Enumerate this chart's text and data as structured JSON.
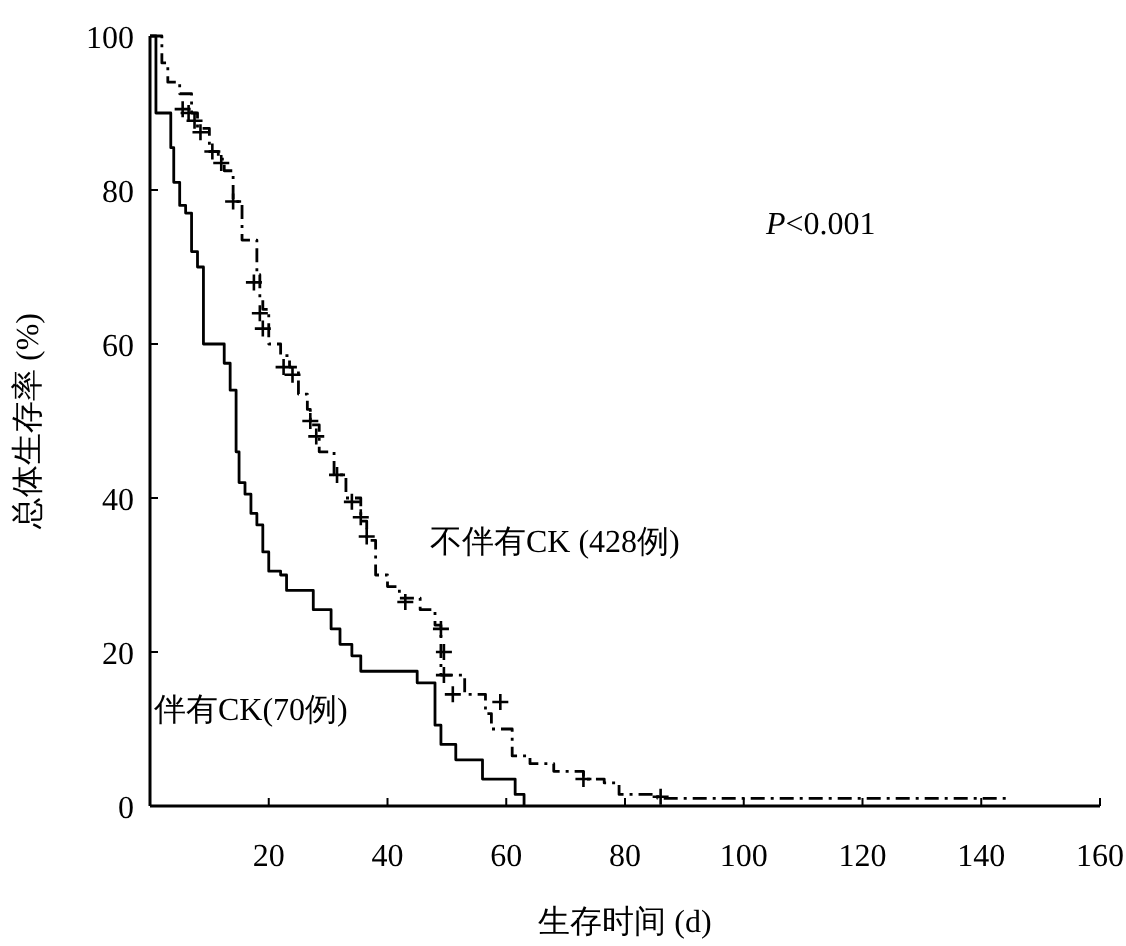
{
  "chart_data": {
    "type": "step",
    "xlabel": "生存时间 (d)",
    "ylabel": "总体生存率 (%)",
    "annotations": [
      "*P*<0.001"
    ],
    "xlim": [
      0,
      160
    ],
    "ylim": [
      0,
      100
    ],
    "xticks": [
      20,
      40,
      60,
      80,
      100,
      120,
      140,
      160
    ],
    "yticks": [
      0,
      20,
      40,
      60,
      80,
      100
    ],
    "legend": false,
    "grid": false,
    "series": [
      {
        "name": "不伴有CK (428例)",
        "color": "#000000",
        "line_style": "dashed",
        "x": [
          0,
          2,
          3,
          5,
          7,
          8,
          10,
          11.5,
          12.5,
          14,
          15.5,
          18,
          18.5,
          19,
          20,
          22,
          23.5,
          25,
          26.5,
          27,
          28.5,
          31,
          33,
          35.5,
          36.5,
          38,
          40,
          42,
          45.5,
          48,
          49,
          53,
          56.5,
          57.5,
          61,
          64,
          68,
          73,
          76.5,
          79,
          85.5,
          145
        ],
        "values": [
          100,
          96.5,
          94,
          92.5,
          90,
          88,
          85,
          84,
          82.5,
          78.5,
          73.5,
          69,
          66,
          64.5,
          60,
          58.5,
          57,
          53.5,
          51.5,
          49.5,
          46,
          43,
          40,
          37,
          34.5,
          30,
          28.5,
          27,
          25.5,
          23.5,
          17,
          14.5,
          12,
          10,
          6.5,
          5.5,
          4.5,
          3.5,
          3,
          1.5,
          1,
          1
        ]
      },
      {
        "name": "伴有CK(70例)",
        "color": "#000000",
        "line_style": "solid",
        "x": [
          0,
          1,
          3.5,
          4,
          5,
          6,
          7,
          8,
          9,
          12.5,
          13.5,
          14.5,
          15,
          16,
          17,
          18,
          19,
          20,
          22,
          23,
          27.5,
          30.5,
          32,
          34,
          35.5,
          40,
          45,
          48,
          49,
          51.5,
          56,
          61.5,
          63
        ],
        "values": [
          100,
          90,
          85.5,
          81,
          78,
          77,
          72,
          70,
          60,
          57.5,
          54,
          46,
          42,
          40.5,
          38,
          36.5,
          33,
          30.5,
          30,
          28,
          25.5,
          23,
          21,
          19.5,
          17.5,
          17.5,
          16,
          10.5,
          8,
          6,
          3.5,
          1.5,
          0
        ]
      },
      {
        "type": "scatter",
        "marker": "cross",
        "color": "#000000",
        "x": [
          5.5,
          6.5,
          7.5,
          8.5,
          10.5,
          12,
          14,
          17.5,
          18.5,
          19,
          22.5,
          24,
          27,
          28,
          31.5,
          34,
          35.5,
          36.5,
          43,
          49,
          49.5,
          49.5,
          51,
          59,
          73,
          86
        ],
        "values": [
          90.5,
          90,
          89,
          87.5,
          85,
          83.5,
          78.5,
          68,
          64,
          62,
          57,
          56,
          50,
          48,
          43,
          39.5,
          37.5,
          35,
          26.5,
          23,
          20,
          17,
          14.5,
          13.5,
          3.5,
          1.2
        ]
      }
    ]
  }
}
